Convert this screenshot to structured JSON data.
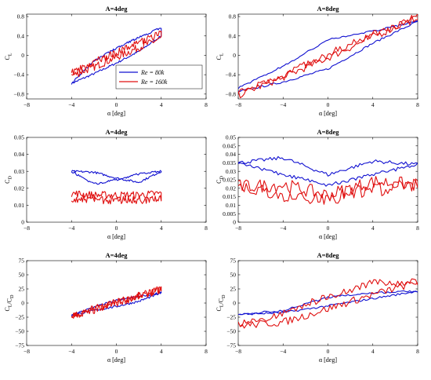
{
  "colors": {
    "re80k": "#1010d0",
    "re160k": "#e01010"
  },
  "legend": {
    "entries": [
      {
        "label": "Re = 80k",
        "color": "#1010d0"
      },
      {
        "label": "Re = 160k",
        "color": "#e01010"
      }
    ],
    "placement": "bottom-right of top-left panel"
  },
  "chart_data": [
    {
      "type": "line",
      "title": "A=4deg",
      "xlabel": "α [deg]",
      "ylabel": "C_L",
      "xlim": [
        -8,
        8
      ],
      "ylim": [
        -0.9,
        0.85
      ],
      "xticks": [
        -8,
        -4,
        0,
        4,
        8
      ],
      "yticks": [
        -0.8,
        -0.4,
        0,
        0.4,
        0.8
      ],
      "grid": false,
      "series": [
        {
          "name": "Re = 80k",
          "color": "#1010d0",
          "hysteresis_loop": true,
          "upstroke": [
            [
              -4,
              -0.58
            ],
            [
              -2,
              -0.38
            ],
            [
              0,
              -0.16
            ],
            [
              2,
              0.08
            ],
            [
              4,
              0.4
            ]
          ],
          "downstroke": [
            [
              4,
              0.57
            ],
            [
              2,
              0.37
            ],
            [
              0,
              0.15
            ],
            [
              -2,
              -0.12
            ],
            [
              -4,
              -0.58
            ]
          ]
        },
        {
          "name": "Re = 160k",
          "color": "#e01010",
          "hysteresis_loop": true,
          "upstroke": [
            [
              -4,
              -0.42
            ],
            [
              -2,
              -0.24
            ],
            [
              0,
              -0.04
            ],
            [
              2,
              0.16
            ],
            [
              4,
              0.35
            ]
          ],
          "downstroke": [
            [
              4,
              0.44
            ],
            [
              2,
              0.26
            ],
            [
              0,
              0.06
            ],
            [
              -2,
              -0.14
            ],
            [
              -4,
              -0.36
            ]
          ]
        }
      ]
    },
    {
      "type": "line",
      "title": "A=8deg",
      "xlabel": "α [deg]",
      "ylabel": "C_L",
      "xlim": [
        -8,
        8
      ],
      "ylim": [
        -0.9,
        0.85
      ],
      "xticks": [
        -8,
        -4,
        0,
        4,
        8
      ],
      "yticks": [
        -0.8,
        -0.4,
        0,
        0.4,
        0.8
      ],
      "grid": false,
      "series": [
        {
          "name": "Re = 80k",
          "color": "#1010d0",
          "hysteresis_loop": true,
          "upstroke": [
            [
              -8,
              -0.75
            ],
            [
              -4,
              -0.55
            ],
            [
              0,
              -0.28
            ],
            [
              4,
              0.25
            ],
            [
              8,
              0.7
            ]
          ],
          "downstroke": [
            [
              8,
              0.7
            ],
            [
              4,
              0.5
            ],
            [
              0,
              0.32
            ],
            [
              -4,
              -0.22
            ],
            [
              -8,
              -0.68
            ]
          ]
        },
        {
          "name": "Re = 160k",
          "color": "#e01010",
          "hysteresis_loop": true,
          "upstroke": [
            [
              -8,
              -0.82
            ],
            [
              -4,
              -0.45
            ],
            [
              0,
              -0.05
            ],
            [
              4,
              0.38
            ],
            [
              8,
              0.78
            ]
          ],
          "downstroke": [
            [
              8,
              0.8
            ],
            [
              4,
              0.42
            ],
            [
              0,
              0.02
            ],
            [
              -4,
              -0.4
            ],
            [
              -8,
              -0.78
            ]
          ]
        }
      ]
    },
    {
      "type": "line",
      "title": "A=4deg",
      "xlabel": "α [deg]",
      "ylabel": "C_D",
      "xlim": [
        -8,
        8
      ],
      "ylim": [
        0,
        0.05
      ],
      "xticks": [
        -8,
        -4,
        0,
        4,
        8
      ],
      "yticks": [
        0,
        0.01,
        0.02,
        0.03,
        0.04,
        0.05
      ],
      "grid": false,
      "series": [
        {
          "name": "Re = 80k",
          "color": "#1010d0",
          "hysteresis_loop": true,
          "upstroke": [
            [
              -4,
              0.03
            ],
            [
              -2,
              0.0295
            ],
            [
              0,
              0.026
            ],
            [
              2,
              0.0235
            ],
            [
              4,
              0.03
            ]
          ],
          "downstroke": [
            [
              4,
              0.03
            ],
            [
              2,
              0.0285
            ],
            [
              0,
              0.025
            ],
            [
              -2,
              0.0225
            ],
            [
              -4,
              0.03
            ]
          ]
        },
        {
          "name": "Re = 160k",
          "color": "#e01010",
          "hysteresis_loop": true,
          "upstroke": [
            [
              -4,
              0.017
            ],
            [
              -2,
              0.016
            ],
            [
              0,
              0.016
            ],
            [
              2,
              0.016
            ],
            [
              4,
              0.017
            ]
          ],
          "downstroke": [
            [
              4,
              0.014
            ],
            [
              2,
              0.013
            ],
            [
              0,
              0.013
            ],
            [
              -2,
              0.013
            ],
            [
              -4,
              0.014
            ]
          ]
        }
      ]
    },
    {
      "type": "line",
      "title": "A=8deg",
      "xlabel": "α [deg]",
      "ylabel": "C_D",
      "xlim": [
        -8,
        8
      ],
      "ylim": [
        0,
        0.05
      ],
      "xticks": [
        -8,
        -4,
        0,
        4,
        8
      ],
      "yticks": [
        0,
        0.005,
        0.01,
        0.015,
        0.02,
        0.025,
        0.03,
        0.035,
        0.04,
        0.045,
        0.05
      ],
      "grid": false,
      "series": [
        {
          "name": "Re = 80k",
          "color": "#1010d0",
          "hysteresis_loop": true,
          "upstroke": [
            [
              -8,
              0.035
            ],
            [
              -4,
              0.038
            ],
            [
              0,
              0.028
            ],
            [
              4,
              0.036
            ],
            [
              8,
              0.034
            ]
          ],
          "downstroke": [
            [
              8,
              0.034
            ],
            [
              4,
              0.028
            ],
            [
              0,
              0.022
            ],
            [
              -4,
              0.028
            ],
            [
              -8,
              0.035
            ]
          ]
        },
        {
          "name": "Re = 160k",
          "color": "#e01010",
          "hysteresis_loop": true,
          "upstroke": [
            [
              -8,
              0.021
            ],
            [
              -4,
              0.022
            ],
            [
              0,
              0.016
            ],
            [
              4,
              0.024
            ],
            [
              8,
              0.022
            ]
          ],
          "downstroke": [
            [
              8,
              0.022
            ],
            [
              4,
              0.019
            ],
            [
              0,
              0.014
            ],
            [
              -4,
              0.016
            ],
            [
              -8,
              0.021
            ]
          ]
        }
      ]
    },
    {
      "type": "line",
      "title": "A=4deg",
      "xlabel": "α [deg]",
      "ylabel": "C_L/C_D",
      "xlim": [
        -8,
        8
      ],
      "ylim": [
        -75,
        75
      ],
      "xticks": [
        -8,
        -4,
        0,
        4,
        8
      ],
      "yticks": [
        -75,
        -50,
        -25,
        0,
        25,
        50,
        75
      ],
      "grid": false,
      "series": [
        {
          "name": "Re = 80k",
          "color": "#1010d0",
          "hysteresis_loop": true,
          "upstroke": [
            [
              -4,
              -22
            ],
            [
              -2,
              -13
            ],
            [
              0,
              -6
            ],
            [
              2,
              3
            ],
            [
              4,
              18
            ]
          ],
          "downstroke": [
            [
              4,
              18
            ],
            [
              2,
              12
            ],
            [
              0,
              5
            ],
            [
              -2,
              -7
            ],
            [
              -4,
              -22
            ]
          ]
        },
        {
          "name": "Re = 160k",
          "color": "#e01010",
          "hysteresis_loop": true,
          "upstroke": [
            [
              -4,
              -23
            ],
            [
              -2,
              -13
            ],
            [
              0,
              0
            ],
            [
              2,
              12
            ],
            [
              4,
              24
            ]
          ],
          "downstroke": [
            [
              4,
              24
            ],
            [
              2,
              13
            ],
            [
              0,
              2
            ],
            [
              -2,
              -10
            ],
            [
              -4,
              -23
            ]
          ]
        }
      ]
    },
    {
      "type": "line",
      "title": "A=8deg",
      "xlabel": "α [deg]",
      "ylabel": "C_L/C_D",
      "xlim": [
        -8,
        8
      ],
      "ylim": [
        -75,
        75
      ],
      "xticks": [
        -8,
        -4,
        0,
        4,
        8
      ],
      "yticks": [
        -75,
        -50,
        -25,
        0,
        25,
        50,
        75
      ],
      "grid": false,
      "series": [
        {
          "name": "Re = 80k",
          "color": "#1010d0",
          "hysteresis_loop": true,
          "upstroke": [
            [
              -8,
              -20
            ],
            [
              -4,
              -17
            ],
            [
              0,
              -5
            ],
            [
              4,
              8
            ],
            [
              8,
              21
            ]
          ],
          "downstroke": [
            [
              8,
              21
            ],
            [
              4,
              18
            ],
            [
              0,
              10
            ],
            [
              -4,
              -13
            ],
            [
              -8,
              -20
            ]
          ]
        },
        {
          "name": "Re = 160k",
          "color": "#e01010",
          "hysteresis_loop": true,
          "upstroke": [
            [
              -8,
              -40
            ],
            [
              -4,
              -34
            ],
            [
              0,
              -10
            ],
            [
              4,
              15
            ],
            [
              8,
              37
            ]
          ],
          "downstroke": [
            [
              8,
              37
            ],
            [
              4,
              35
            ],
            [
              0,
              12
            ],
            [
              -4,
              -18
            ],
            [
              -8,
              -38
            ]
          ]
        }
      ]
    }
  ]
}
